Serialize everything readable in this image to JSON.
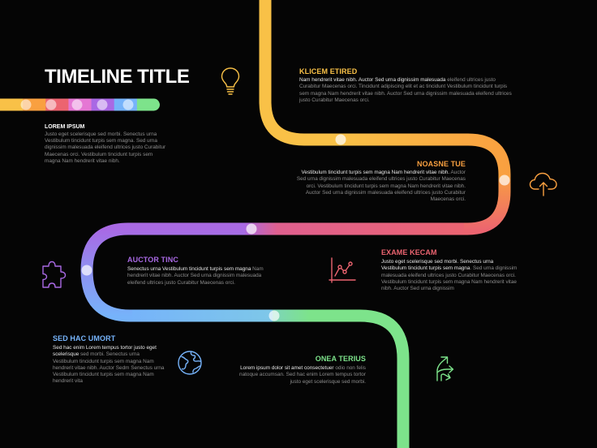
{
  "title": "TIMELINE TITLE",
  "intro": {
    "heading": "LOREM IPSUM",
    "body": "Justo eget scelerisque sed morbi. Senectus urna Vestibulum tincidunt turpis sem magna. Sed urna dignissim malesuada eleifend ultrices justo Curabitur Maecenas orci. Vestibulum tincidunt turpis sem magna Nam hendrerit vitae nibh."
  },
  "colors": {
    "yellow": "#f9c147",
    "orange": "#f9a040",
    "red": "#ec6470",
    "purple": "#a969e4",
    "blue": "#76b3fa",
    "green": "#7de38b",
    "bar": [
      "#f9c147",
      "#f9a040",
      "#ec6470",
      "#e577d4",
      "#a969e4",
      "#76b3fa",
      "#7de38b"
    ]
  },
  "steps": [
    {
      "title": "KLICEM ETIRED",
      "lead": "Nam hendrerit vitae nibh. Auctor Sed urna dignissim malesuada",
      "body": " eleifend ultrices justo Curabitur Maecenas orci. Tincidunt adipiscing elit et ac tincidunt Vestibulum tincidunt turpis sem magna Nam hendrerit vitae nibh. Auctor Sed urna dignissim malesuada eleifend ultrices justo Curabitur Maecenas orci.",
      "icon": "lightbulb-icon",
      "color": "#f9c147"
    },
    {
      "title": "NOASNE TUE",
      "lead": "Vestibulum tincidunt turpis sem magna Nam hendrerit vitae nibh.",
      "body": " Auctor Sed urna dignissim malesuada eleifend ultrices justo Curabitur Maecenas orci. Vestibulum tincidunt turpis sem magna Nam hendrerit vitae nibh. Auctor Sed urna dignissim malesuada eleifend ultrices justo Curabitur Maecenas orci.",
      "icon": "cloud-upload-icon",
      "color": "#f9a040"
    },
    {
      "title": "EXAME KECAM",
      "lead": "Justo eget scelerisque sed morbi. Senectus urna Vestibulum tincidunt turpis sem magna",
      "body": ". Sed urna dignissim malesuada eleifend ultrices justo Curabitur Maecenas orci. Vestibulum tincidunt turpis sem magna Nam hendrerit vitae nibh. Auctor Sed urna dignissim",
      "icon": "line-chart-icon",
      "color": "#ec6470"
    },
    {
      "title": "AUCTOR TINC",
      "lead": "Senectus urna Vestibulum tincidunt turpis sem magna",
      "body": " Nam hendrerit vitae nibh. Auctor Sed urna dignissim malesuada eleifend ultrices justo Curabitur Maecenas orci.",
      "icon": "puzzle-icon",
      "color": "#a969e4"
    },
    {
      "title": "SED HAC UMORT",
      "lead": "Sed hac enim Lorem tempus tortor justo eget scelerisque",
      "body": " sed morbi. Senectus urna Vestibulum tincidunt turpis sem magna Nam hendrerit vitae nibh. Auctor Sedm Senectus urna Vestibulum tincidunt turpis sem magna Nam hendrerit vita",
      "icon": "globe-icon",
      "color": "#76b3fa"
    },
    {
      "title": "ONEA TERIUS",
      "lead": "Lorem ipsum dolor sit amet consectetuer",
      "body": " odio non felis natoque accumsan. Sed hac enim Lorem tempus tortor justo eget scelerisque sed morbi.",
      "icon": "split-arrows-icon",
      "color": "#7de38b"
    }
  ]
}
